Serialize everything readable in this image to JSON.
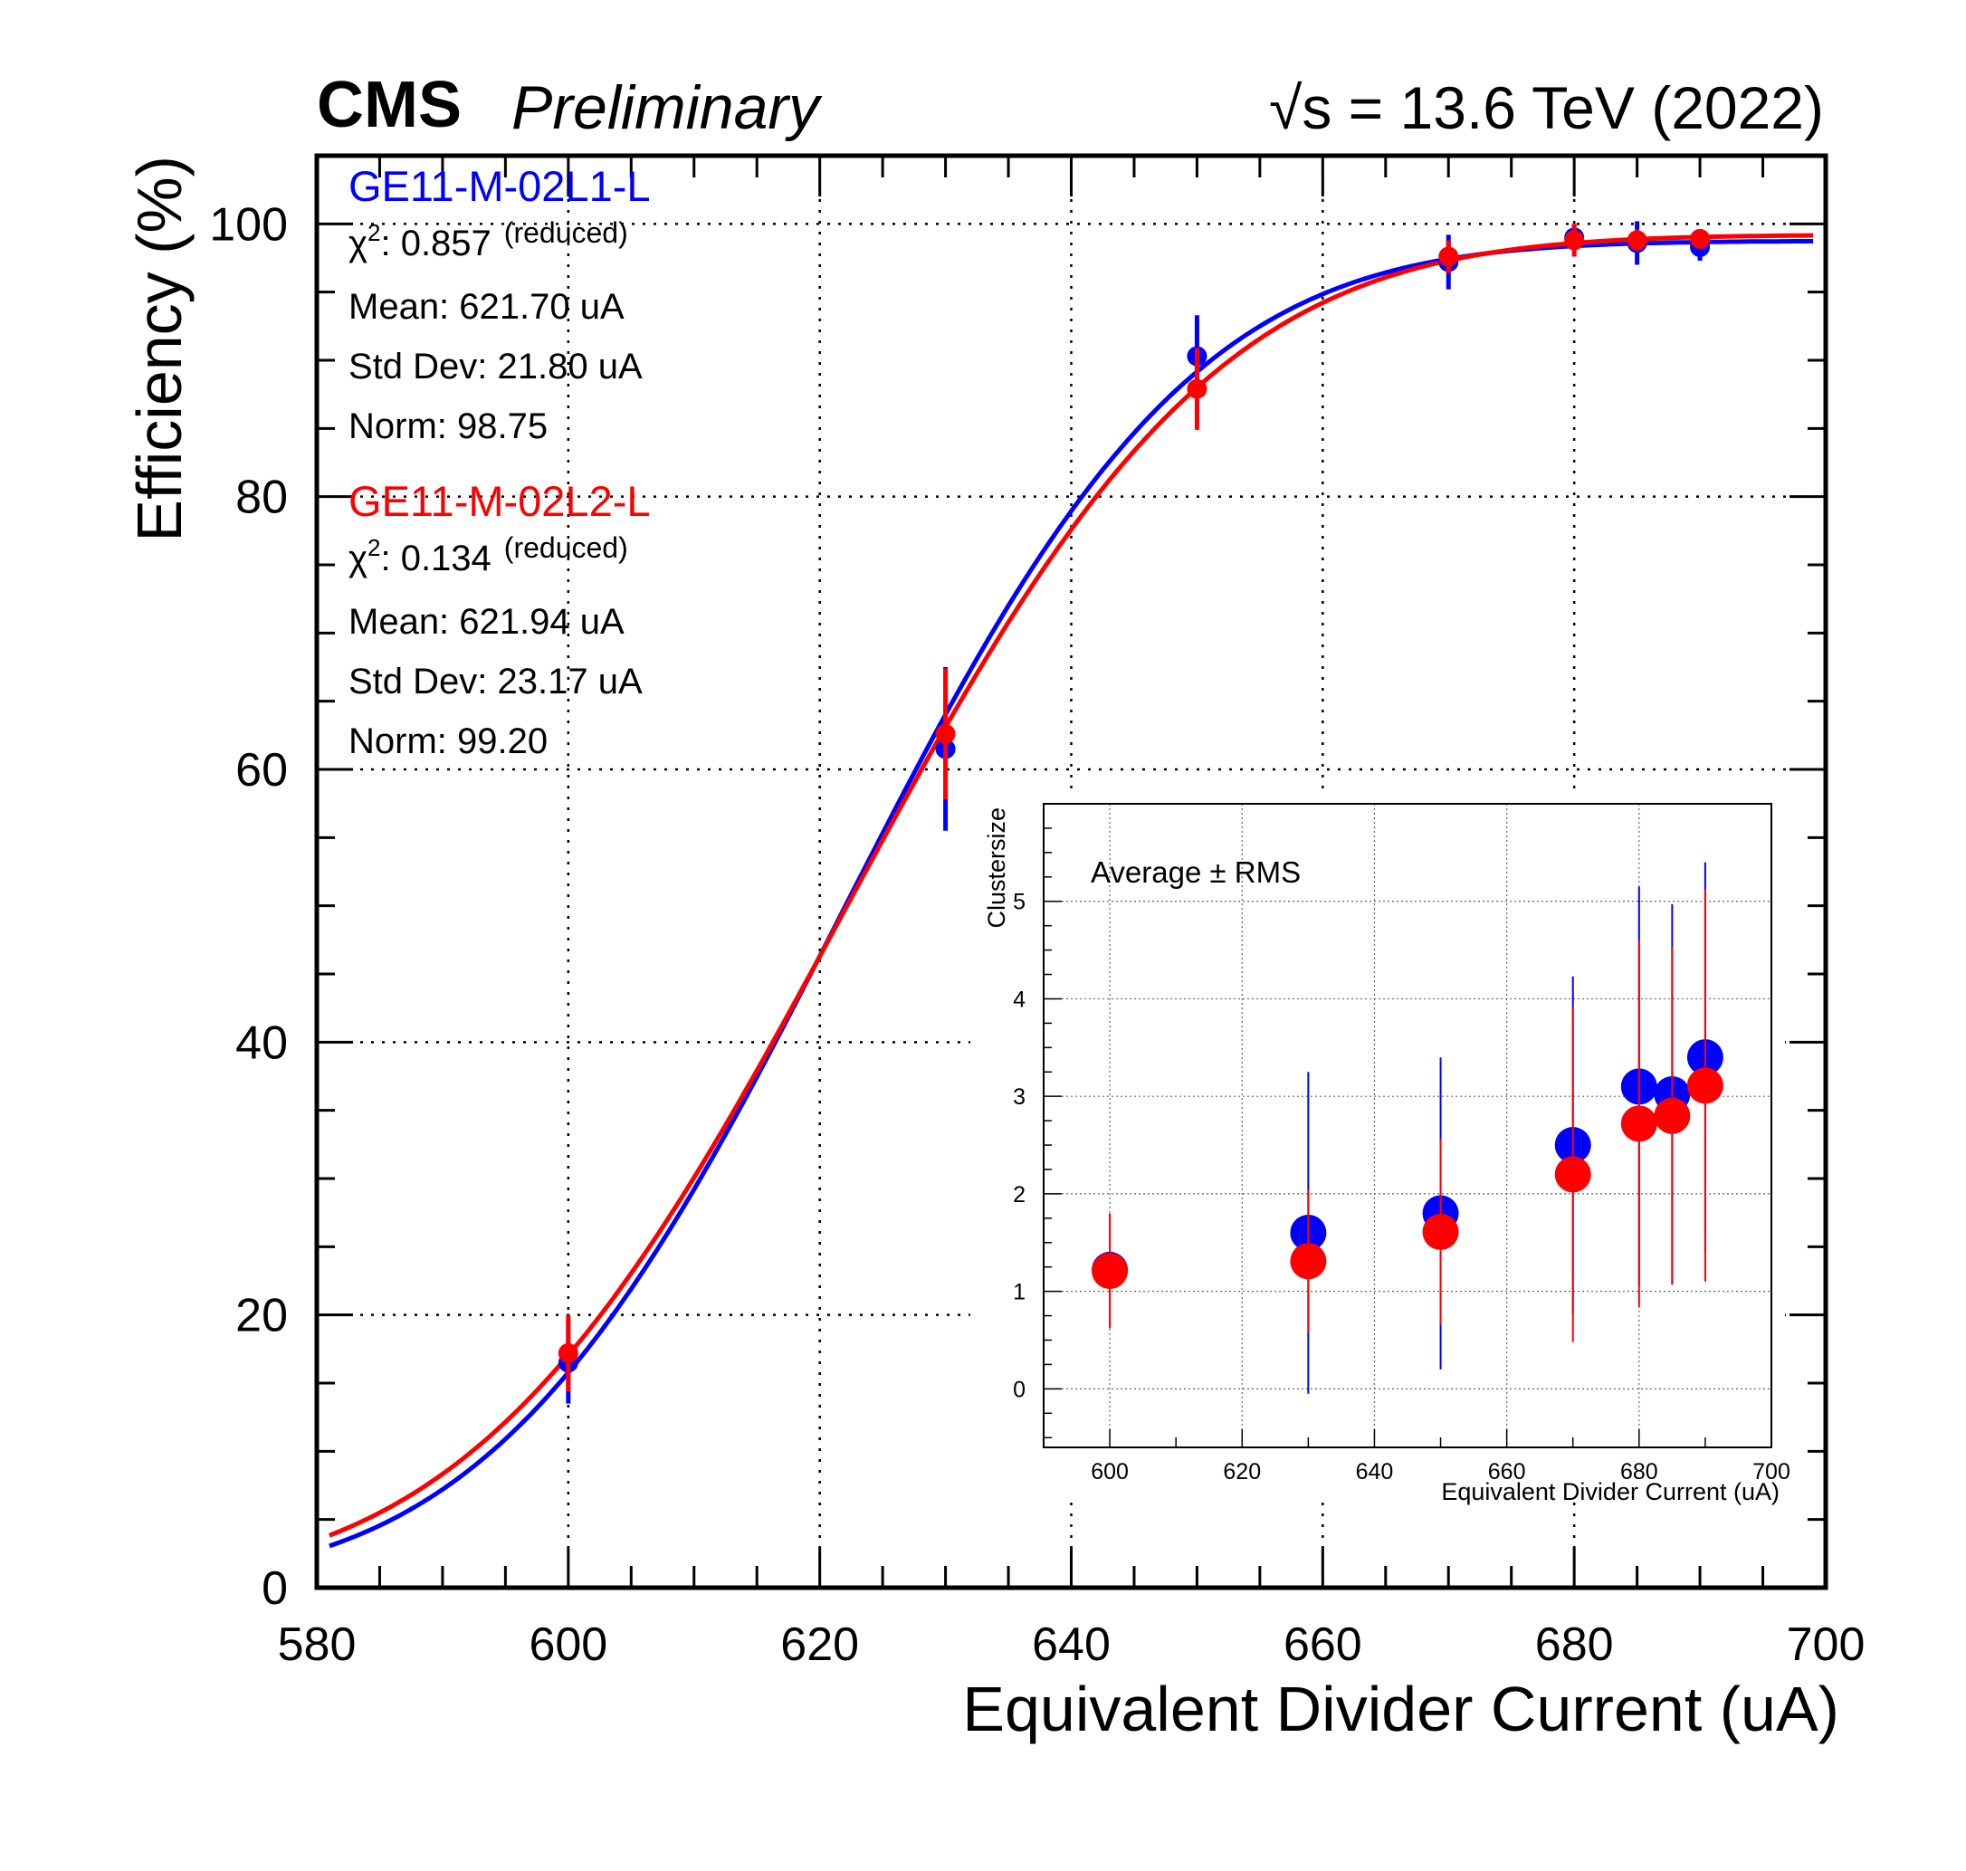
{
  "header": {
    "experiment": "CMS",
    "status": "Preliminary",
    "energy_label": "√s = 13.6 TeV (2022)"
  },
  "colors": {
    "series1": "#0000ff",
    "series2": "#ff0000",
    "axis": "#000000"
  },
  "chart_data": [
    {
      "type": "scatter",
      "title": "",
      "xlabel": "Equivalent Divider Current (uA)",
      "ylabel": "Efficiency (%)",
      "xlim": [
        580,
        700
      ],
      "ylim": [
        0,
        105
      ],
      "xticks": [
        580,
        600,
        620,
        640,
        660,
        680,
        700
      ],
      "yticks": [
        0,
        20,
        40,
        60,
        80,
        100
      ],
      "grid": true,
      "series": [
        {
          "name": "GE11-M-02L1-L",
          "color": "#0000ff",
          "fit": "erf",
          "stats": {
            "chi2_label": "χ",
            "chi2_sup": "2",
            "chi2_value": ": 0.857",
            "chi2_note": "(reduced)",
            "mean_label": "Mean: 621.70 uA",
            "std_label": "Std Dev: 21.80 uA",
            "norm_label": "Norm: 98.75"
          },
          "fit_params": {
            "mean": 621.7,
            "sigma": 21.8,
            "norm": 98.75
          },
          "x": [
            600,
            630,
            650,
            670,
            680,
            685,
            690
          ],
          "y": [
            16.5,
            61.5,
            90.3,
            97.2,
            99.0,
            98.6,
            98.3
          ],
          "yerr": [
            3.0,
            6.0,
            3.0,
            2.0,
            1.0,
            1.6,
            1.0
          ]
        },
        {
          "name": "GE11-M-02L2-L",
          "color": "#ff0000",
          "fit": "erf",
          "stats": {
            "chi2_label": "χ",
            "chi2_sup": "2",
            "chi2_value": ": 0.134",
            "chi2_note": "(reduced)",
            "mean_label": "Mean: 621.94 uA",
            "std_label": "Std Dev: 23.17 uA",
            "norm_label": "Norm: 99.20"
          },
          "fit_params": {
            "mean": 621.94,
            "sigma": 23.17,
            "norm": 99.2
          },
          "x": [
            600,
            630,
            650,
            670,
            680,
            685,
            690
          ],
          "y": [
            17.2,
            62.6,
            87.9,
            97.6,
            98.8,
            98.8,
            98.9
          ],
          "yerr": [
            2.8,
            4.8,
            3.0,
            1.2,
            1.2,
            0.8,
            0.5
          ]
        }
      ]
    },
    {
      "type": "scatter",
      "title": "Average ± RMS",
      "xlabel": "Equivalent Divider Current (uA)",
      "ylabel": "Clustersize",
      "xlim": [
        590,
        700
      ],
      "ylim": [
        -0.6,
        6.0
      ],
      "xticks": [
        600,
        620,
        640,
        660,
        680,
        700
      ],
      "yticks": [
        0,
        1,
        2,
        3,
        4,
        5
      ],
      "grid": true,
      "series": [
        {
          "name": "GE11-M-02L1-L",
          "color": "#0000ff",
          "x": [
            600,
            630,
            650,
            670,
            680,
            685,
            690
          ],
          "y": [
            1.22,
            1.6,
            1.8,
            2.5,
            3.1,
            3.02,
            3.4
          ],
          "yerr": [
            0.58,
            1.65,
            1.6,
            1.73,
            2.05,
            1.95,
            2.0
          ]
        },
        {
          "name": "GE11-M-02L2-L",
          "color": "#ff0000",
          "x": [
            600,
            630,
            650,
            670,
            680,
            685,
            690
          ],
          "y": [
            1.21,
            1.31,
            1.61,
            2.2,
            2.72,
            2.8,
            3.11
          ],
          "yerr": [
            0.59,
            0.73,
            0.95,
            1.72,
            1.88,
            1.73,
            2.01
          ]
        }
      ]
    }
  ]
}
